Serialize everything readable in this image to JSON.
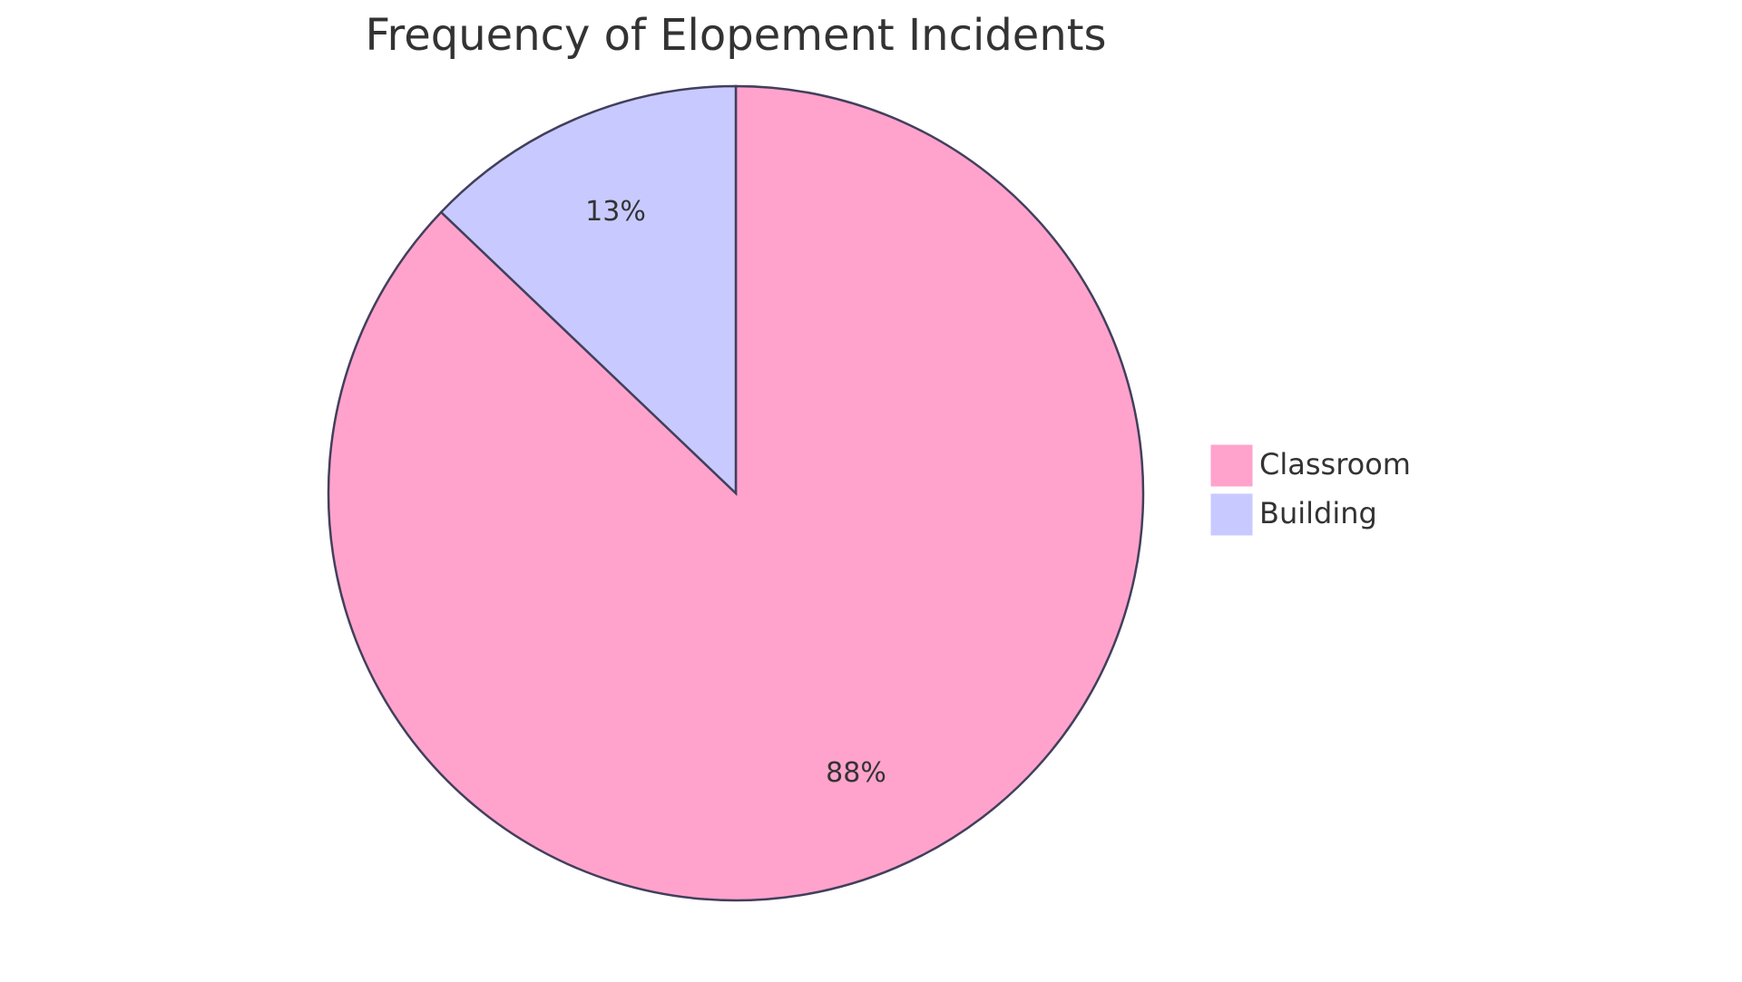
{
  "chart_data": {
    "type": "pie",
    "title": "Frequency of Elopement Incidents",
    "categories": [
      "Classroom",
      "Building"
    ],
    "values": [
      88,
      13
    ],
    "value_labels": [
      "88%",
      "13%"
    ],
    "colors": [
      "#ffa3cc",
      "#c8caff"
    ],
    "legend": "right"
  }
}
